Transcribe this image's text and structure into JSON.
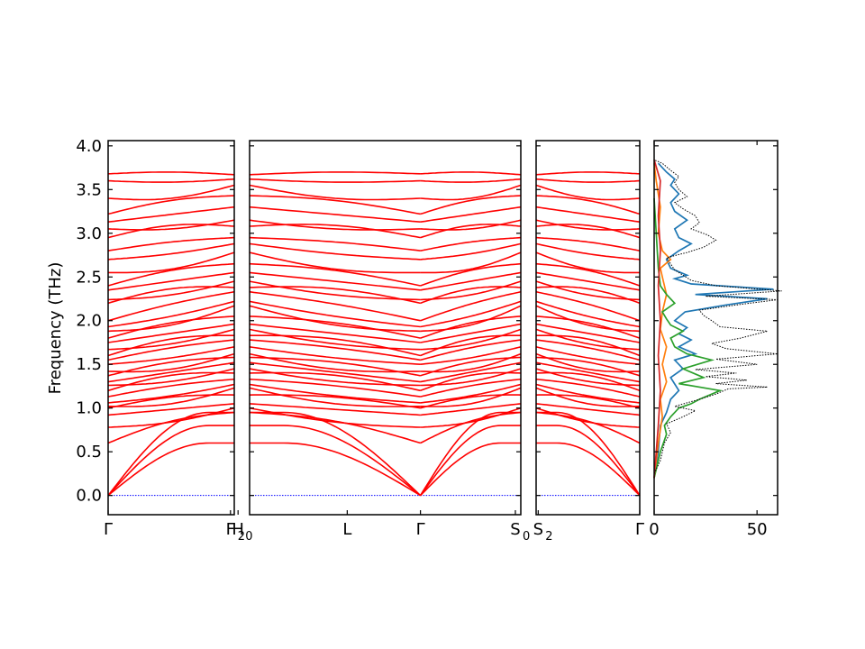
{
  "chart_data": {
    "type": "line",
    "ylabel": "Frequency (THz)",
    "ylim": [
      -0.22,
      4.06
    ],
    "y_ticks": [
      "0.0",
      "0.5",
      "1.0",
      "1.5",
      "2.0",
      "2.5",
      "3.0",
      "3.5",
      "4.0"
    ],
    "y_tick_values": [
      0,
      0.5,
      1.0,
      1.5,
      2.0,
      2.5,
      3.0,
      3.5,
      4.0
    ],
    "colors": {
      "bands": "#ff0000",
      "zero_line": "#0000ff",
      "dos_total": "#000000",
      "pdos": [
        "#1f77b4",
        "#ff7f0e",
        "#2ca02c",
        "#d62728"
      ]
    },
    "panels": [
      {
        "name": "segment-1",
        "x_ticks": [
          {
            "main": "Γ",
            "sub": "",
            "pos": 0
          },
          {
            "main": "F",
            "sub": "2",
            "pos": 0.97
          },
          {
            "main": "H",
            "sub": "0",
            "pos": 1.03
          }
        ]
      },
      {
        "name": "segment-2",
        "x_ticks": [
          {
            "main": "L",
            "sub": "",
            "pos": 0.36
          },
          {
            "main": "Γ",
            "sub": "",
            "pos": 0.63
          },
          {
            "main": "S",
            "sub": "0",
            "pos": 0.98
          }
        ]
      },
      {
        "name": "segment-3",
        "x_ticks": [
          {
            "main": "S",
            "sub": "2",
            "pos": 0.02
          },
          {
            "main": "Γ",
            "sub": "",
            "pos": 1.0
          }
        ]
      }
    ],
    "band_levels_gamma": [
      0,
      0,
      0,
      0.6,
      0.78,
      0.92,
      1.0,
      1.02,
      1.06,
      1.13,
      1.2,
      1.26,
      1.3,
      1.37,
      1.42,
      1.5,
      1.55,
      1.6,
      1.67,
      1.75,
      1.8,
      1.88,
      1.93,
      2.0,
      2.2,
      2.24,
      2.35,
      2.4,
      2.55,
      2.7,
      2.8,
      2.95,
      3.05,
      3.13,
      3.22,
      3.4,
      3.6,
      3.68,
      3.82
    ],
    "band_levels_zone": [
      0,
      0.75,
      0.8,
      0.95,
      1.0,
      1.05,
      1.15,
      1.23,
      1.27,
      1.33,
      1.4,
      1.45,
      1.52,
      1.58,
      1.62,
      1.7,
      1.78,
      1.83,
      1.9,
      1.96,
      2.05,
      2.17,
      2.22,
      2.33,
      2.38,
      2.45,
      2.55,
      2.65,
      2.78,
      2.88,
      2.95,
      3.08,
      3.15,
      3.3,
      3.43,
      3.55,
      3.62,
      3.67
    ],
    "dos": {
      "x_ticks": [
        "0",
        "50"
      ],
      "x_tick_values": [
        0,
        50
      ],
      "xlim": [
        0,
        60
      ],
      "total": [
        [
          0,
          0.25
        ],
        [
          3,
          0.4
        ],
        [
          5,
          0.6
        ],
        [
          8,
          0.72
        ],
        [
          6,
          0.82
        ],
        [
          14,
          0.9
        ],
        [
          20,
          0.97
        ],
        [
          10,
          1.02
        ],
        [
          16,
          1.06
        ],
        [
          22,
          1.1
        ],
        [
          30,
          1.16
        ],
        [
          36,
          1.22
        ],
        [
          55,
          1.24
        ],
        [
          30,
          1.28
        ],
        [
          45,
          1.32
        ],
        [
          25,
          1.36
        ],
        [
          40,
          1.4
        ],
        [
          20,
          1.44
        ],
        [
          50,
          1.5
        ],
        [
          30,
          1.56
        ],
        [
          60,
          1.62
        ],
        [
          35,
          1.68
        ],
        [
          28,
          1.74
        ],
        [
          42,
          1.8
        ],
        [
          55,
          1.88
        ],
        [
          32,
          1.93
        ],
        [
          28,
          2.0
        ],
        [
          24,
          2.06
        ],
        [
          22,
          2.12
        ],
        [
          40,
          2.18
        ],
        [
          60,
          2.24
        ],
        [
          25,
          2.28
        ],
        [
          62,
          2.34
        ],
        [
          30,
          2.4
        ],
        [
          18,
          2.46
        ],
        [
          14,
          2.52
        ],
        [
          10,
          2.58
        ],
        [
          8,
          2.65
        ],
        [
          6,
          2.72
        ],
        [
          16,
          2.78
        ],
        [
          24,
          2.84
        ],
        [
          30,
          2.92
        ],
        [
          26,
          2.98
        ],
        [
          18,
          3.05
        ],
        [
          22,
          3.12
        ],
        [
          20,
          3.2
        ],
        [
          14,
          3.28
        ],
        [
          10,
          3.35
        ],
        [
          16,
          3.42
        ],
        [
          12,
          3.5
        ],
        [
          10,
          3.58
        ],
        [
          12,
          3.65
        ],
        [
          8,
          3.72
        ],
        [
          4,
          3.8
        ],
        [
          0,
          3.84
        ]
      ],
      "pdos": [
        {
          "series": [
            [
              0,
              0.2
            ],
            [
              2,
              0.5
            ],
            [
              3,
              0.8
            ],
            [
              6,
              0.95
            ],
            [
              8,
              1.1
            ],
            [
              12,
              1.2
            ],
            [
              8,
              1.35
            ],
            [
              14,
              1.45
            ],
            [
              10,
              1.55
            ],
            [
              20,
              1.62
            ],
            [
              12,
              1.7
            ],
            [
              18,
              1.78
            ],
            [
              12,
              1.85
            ],
            [
              16,
              1.92
            ],
            [
              10,
              2.0
            ],
            [
              15,
              2.1
            ],
            [
              35,
              2.18
            ],
            [
              55,
              2.25
            ],
            [
              20,
              2.3
            ],
            [
              58,
              2.36
            ],
            [
              18,
              2.42
            ],
            [
              10,
              2.48
            ],
            [
              16,
              2.52
            ],
            [
              8,
              2.6
            ],
            [
              6,
              2.7
            ],
            [
              12,
              2.8
            ],
            [
              18,
              2.88
            ],
            [
              12,
              2.95
            ],
            [
              10,
              3.05
            ],
            [
              16,
              3.15
            ],
            [
              10,
              3.25
            ],
            [
              8,
              3.35
            ],
            [
              12,
              3.45
            ],
            [
              8,
              3.55
            ],
            [
              10,
              3.62
            ],
            [
              6,
              3.7
            ],
            [
              2,
              3.8
            ]
          ]
        },
        {
          "series": [
            [
              0,
              0.2
            ],
            [
              2,
              0.6
            ],
            [
              4,
              0.9
            ],
            [
              3,
              1.1
            ],
            [
              6,
              1.3
            ],
            [
              4,
              1.5
            ],
            [
              6,
              1.7
            ],
            [
              3,
              1.9
            ],
            [
              4,
              2.1
            ],
            [
              6,
              2.3
            ],
            [
              4,
              2.5
            ],
            [
              3,
              2.6
            ],
            [
              8,
              2.7
            ],
            [
              4,
              2.8
            ],
            [
              2,
              3.0
            ],
            [
              3,
              3.3
            ],
            [
              1,
              3.6
            ],
            [
              0,
              3.8
            ]
          ]
        },
        {
          "series": [
            [
              0,
              0.2
            ],
            [
              3,
              0.5
            ],
            [
              6,
              0.7
            ],
            [
              5,
              0.8
            ],
            [
              8,
              0.9
            ],
            [
              12,
              1.0
            ],
            [
              18,
              1.05
            ],
            [
              22,
              1.1
            ],
            [
              32,
              1.2
            ],
            [
              12,
              1.28
            ],
            [
              24,
              1.35
            ],
            [
              14,
              1.45
            ],
            [
              28,
              1.55
            ],
            [
              16,
              1.62
            ],
            [
              10,
              1.7
            ],
            [
              8,
              1.8
            ],
            [
              14,
              1.88
            ],
            [
              8,
              1.95
            ],
            [
              6,
              2.02
            ],
            [
              4,
              2.1
            ],
            [
              10,
              2.2
            ],
            [
              6,
              2.3
            ],
            [
              3,
              2.4
            ],
            [
              2,
              2.6
            ],
            [
              1,
              3.0
            ],
            [
              0,
              3.4
            ]
          ]
        },
        {
          "series": [
            [
              0,
              0.2
            ],
            [
              2,
              0.8
            ],
            [
              3,
              1.2
            ],
            [
              2,
              1.6
            ],
            [
              3,
              2.0
            ],
            [
              2,
              2.4
            ],
            [
              3,
              2.8
            ],
            [
              2,
              3.2
            ],
            [
              3,
              3.6
            ],
            [
              0,
              3.84
            ]
          ]
        }
      ]
    }
  }
}
